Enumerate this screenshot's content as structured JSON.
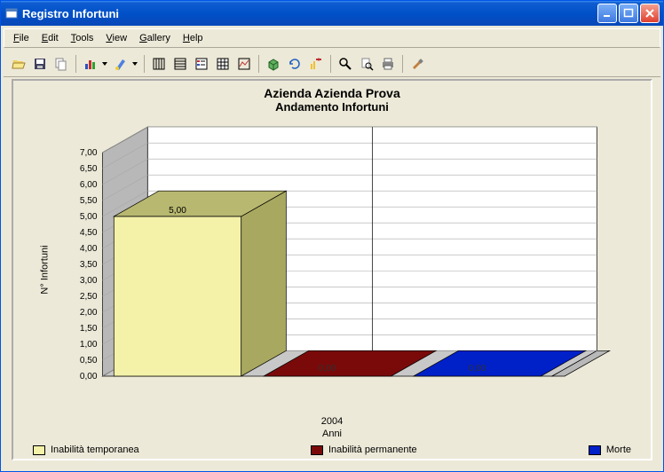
{
  "window": {
    "title": "Registro Infortuni"
  },
  "menu": {
    "file": "File",
    "edit": "Edit",
    "tools": "Tools",
    "view": "View",
    "gallery": "Gallery",
    "help": "Help"
  },
  "chart": {
    "type": "bar-3d",
    "title": "Azienda Azienda Prova",
    "subtitle": "Andamento Infortuni",
    "ylabel": "N° Infortuni",
    "xlabel": "Anni",
    "xtick": "2004",
    "ylim": [
      0,
      7
    ],
    "ytick_step": 0.5,
    "yticks": [
      "0,00",
      "0,50",
      "1,00",
      "1,50",
      "2,00",
      "2,50",
      "3,00",
      "3,50",
      "4,00",
      "4,50",
      "5,00",
      "5,50",
      "6,00",
      "6,50",
      "7,00"
    ],
    "series": [
      {
        "name": "Inabilità temporanea",
        "value": 5.0,
        "value_label": "5,00",
        "color": "#f4f1a8"
      },
      {
        "name": "Inabilità permanente",
        "value": 0.0,
        "value_label": "0,00",
        "color": "#7a0a0a"
      },
      {
        "name": "Morte",
        "value": 0.0,
        "value_label": "0,00",
        "color": "#0020c8"
      }
    ],
    "background_color": "#ece9d8",
    "plot_back_color": "#ffffff",
    "grid_color": "#a8a8a8",
    "wall_color": "#b8b8b8",
    "floor_color": "#c8c8c8",
    "bar_top_color": "#b8b870",
    "bar_side_color": "#a8a860"
  }
}
